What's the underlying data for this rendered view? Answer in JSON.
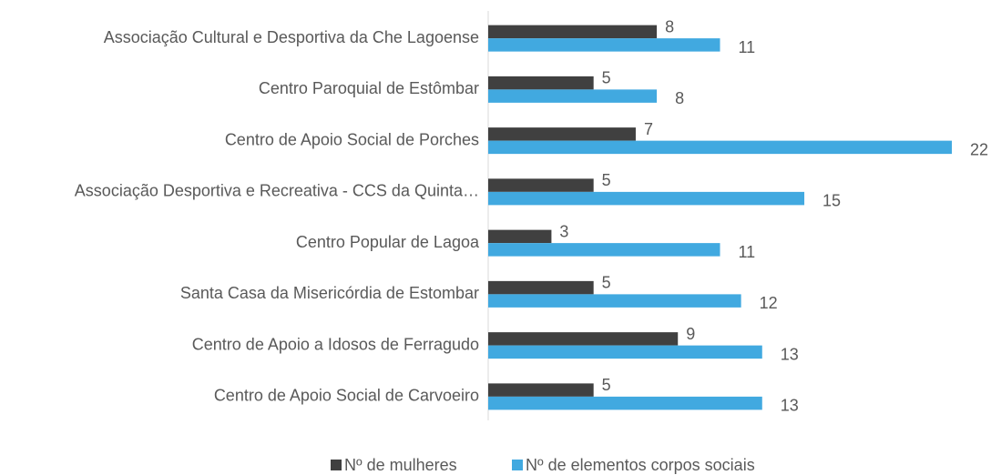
{
  "chart_data": {
    "type": "bar",
    "orientation": "horizontal",
    "categories": [
      "Associação Cultural e Desportiva da Che Lagoense",
      "Centro Paroquial de Estômbar",
      "Centro de Apoio Social de Porches",
      "Associação Desportiva e Recreativa - CCS da Quinta…",
      "Centro Popular de Lagoa",
      "Santa Casa da Misericórdia de Estombar",
      "Centro de Apoio a Idosos de Ferragudo",
      "Centro de Apoio Social de Carvoeiro"
    ],
    "series": [
      {
        "name": "Nº de mulheres",
        "color": "#404040",
        "values": [
          8,
          5,
          7,
          5,
          3,
          5,
          9,
          5
        ]
      },
      {
        "name": "Nº de elementos corpos sociais",
        "color": "#41a9e0",
        "values": [
          11,
          8,
          22,
          15,
          11,
          12,
          13,
          13
        ]
      }
    ],
    "xlim": [
      0,
      22
    ],
    "legend": "bottom"
  }
}
